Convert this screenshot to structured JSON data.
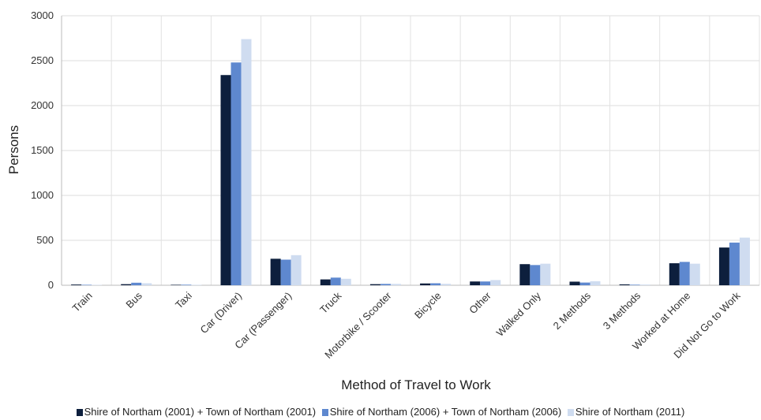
{
  "chart_data": {
    "type": "bar",
    "title": "",
    "xlabel": "Method of Travel to Work",
    "ylabel": "Persons",
    "ylim": [
      0,
      3000
    ],
    "yticks": [
      0,
      500,
      1000,
      1500,
      2000,
      2500,
      3000
    ],
    "grid": true,
    "legend_position": "bottom",
    "categories": [
      "Train",
      "Bus",
      "Taxi",
      "Car (Driver)",
      "Car (Passenger)",
      "Truck",
      "Motorbike / Scooter",
      "Bicycle",
      "Other",
      "Walked Only",
      "2 Methods",
      "3 Methods",
      "Worked at Home",
      "Did Not Go to Work"
    ],
    "series": [
      {
        "name": "Shire of Northam (2001) + Town of Northam (2001)",
        "color": "#0d1f3d",
        "values": [
          8,
          12,
          5,
          2340,
          295,
          65,
          12,
          20,
          42,
          235,
          40,
          10,
          245,
          420
        ]
      },
      {
        "name": "Shire of Northam (2006) + Town of Northam (2006)",
        "color": "#5e88cf",
        "values": [
          5,
          28,
          6,
          2480,
          285,
          85,
          15,
          22,
          42,
          225,
          30,
          6,
          260,
          475
        ]
      },
      {
        "name": "Shire of Northam (2011)",
        "color": "#cfdcf0",
        "values": [
          4,
          22,
          5,
          2740,
          335,
          72,
          15,
          16,
          58,
          240,
          45,
          8,
          240,
          530
        ]
      }
    ]
  }
}
